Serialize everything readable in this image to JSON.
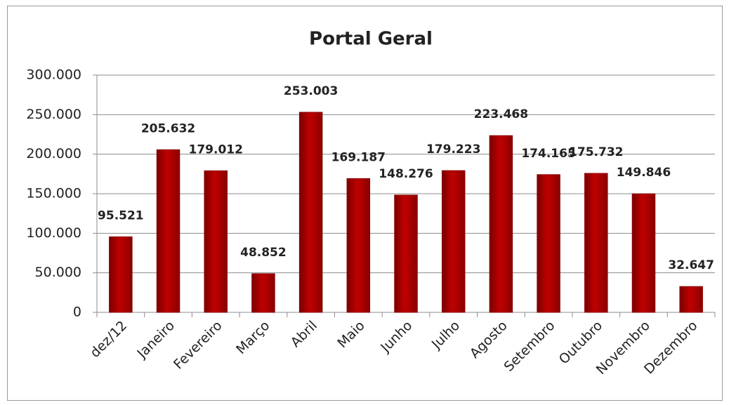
{
  "chart_data": {
    "type": "bar",
    "title": "Portal Geral",
    "categories": [
      "dez/12",
      "Janeiro",
      "Fevereiro",
      "Março",
      "Abril",
      "Maio",
      "Junho",
      "Julho",
      "Agosto",
      "Setembro",
      "Outubro",
      "Novembro",
      "Dezembro"
    ],
    "values": [
      95521,
      205632,
      179012,
      48852,
      253003,
      169187,
      148276,
      179223,
      223468,
      174165,
      175732,
      149846,
      32647
    ],
    "value_labels": [
      "95.521",
      "205.632",
      "179.012",
      "48.852",
      "253.003",
      "169.187",
      "148.276",
      "179.223",
      "223.468",
      "174.165",
      "175.732",
      "149.846",
      "32.647"
    ],
    "color": "#c00000",
    "ylim": [
      0,
      300000
    ],
    "yticks": [
      0,
      {
        "value": 50000,
        "label": "50.000"
      },
      {
        "value": 100000,
        "label": "100.000"
      },
      {
        "value": 150000,
        "label": "150.000"
      },
      {
        "value": 200000,
        "label": "200.000"
      },
      {
        "value": 250000,
        "label": "250.000"
      },
      {
        "value": 300000,
        "label": "300.000"
      }
    ],
    "grid": true
  }
}
